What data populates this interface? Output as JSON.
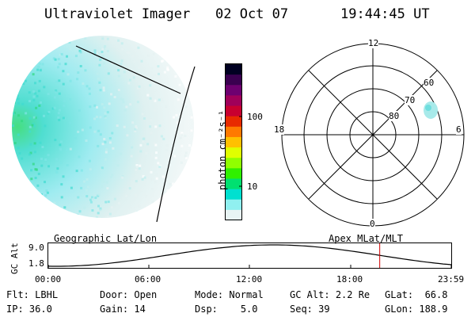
{
  "header": {
    "title": "Ultraviolet Imager",
    "date": "02 Oct 07",
    "time": "19:44:45 UT"
  },
  "colorbar": {
    "label": "photon cm⁻²s⁻¹",
    "ticks": [
      "100",
      "10"
    ],
    "colors": [
      "#000022",
      "#3a0050",
      "#6e0070",
      "#a0005a",
      "#c80030",
      "#e82a00",
      "#ff7a00",
      "#ffc000",
      "#e0ff00",
      "#90ff00",
      "#30f000",
      "#00e070",
      "#00e0d0",
      "#90f0f0",
      "#e8f4f4"
    ]
  },
  "polar": {
    "mlt_labels": {
      "top": "12",
      "bottom": "0",
      "left": "18",
      "right": "6"
    },
    "lat_labels": [
      "80",
      "70",
      "60"
    ]
  },
  "timeline": {
    "left_label": "Geographic Lat/Lon",
    "right_label": "Apex MLat/MLT",
    "y_axis_label": "GC Alt",
    "y_ticks": [
      "9.0",
      "1.8"
    ],
    "x_ticks": [
      "00:00",
      "06:00",
      "12:00",
      "18:00",
      "23:59"
    ],
    "current_time_fraction": 0.8225
  },
  "info": {
    "row1": [
      {
        "label": "Flt:",
        "value": "LBHL"
      },
      {
        "label": "Door:",
        "value": "Open"
      },
      {
        "label": "Mode:",
        "value": "Normal"
      },
      {
        "label": "GC Alt:",
        "value": "2.2 Re"
      },
      {
        "label": "GLat:",
        "value": "66.8"
      }
    ],
    "row2": [
      {
        "label": "IP:",
        "value": "36.0"
      },
      {
        "label": "Gain:",
        "value": "14"
      },
      {
        "label": "Dsp:",
        "value": "5.0"
      },
      {
        "label": "Seq:",
        "value": "39"
      },
      {
        "label": "GLon:",
        "value": "188.9"
      }
    ]
  }
}
